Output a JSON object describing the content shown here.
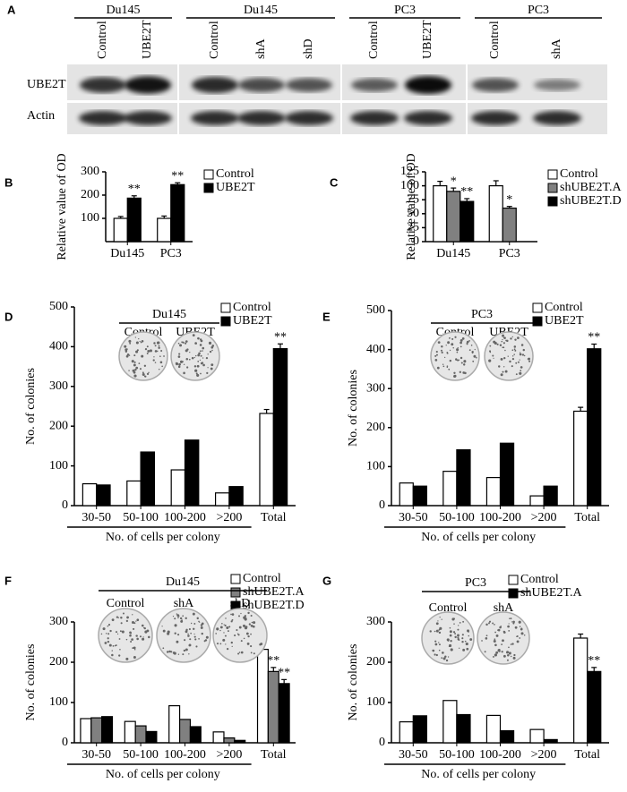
{
  "blot": {
    "panel": "A",
    "groups": [
      {
        "name": "Du145",
        "lanes": [
          "Control",
          "UBE2T"
        ]
      },
      {
        "name": "Du145",
        "lanes": [
          "Control",
          "shA",
          "shD"
        ]
      },
      {
        "name": "PC3",
        "lanes": [
          "Control",
          "UBE2T"
        ]
      },
      {
        "name": "PC3",
        "lanes": [
          "Control",
          "shA"
        ]
      }
    ],
    "rows": [
      "UBE2T",
      "Actin"
    ]
  },
  "chart_data": [
    {
      "type": "bar",
      "panel": "B",
      "y_label": "Relative value of OD",
      "categories": [
        "Du145",
        "PC3"
      ],
      "ylim": [
        0,
        300
      ],
      "yticks": [
        100,
        200,
        300
      ],
      "series": [
        {
          "name": "Control",
          "color": "#ffffff",
          "values": [
            100,
            100
          ],
          "errors": [
            8,
            10
          ]
        },
        {
          "name": "UBE2T",
          "color": "#000000",
          "values": [
            187,
            245
          ],
          "errors": [
            10,
            8
          ],
          "labels": [
            "**",
            "**"
          ]
        }
      ]
    },
    {
      "type": "bar",
      "panel": "C",
      "y_label": "Relative value of OD",
      "categories": [
        "Du145",
        "PC3"
      ],
      "ylim": [
        0,
        125
      ],
      "yticks": [
        0,
        25,
        50,
        75,
        100,
        125
      ],
      "series": [
        {
          "name": "Control",
          "color": "#ffffff",
          "values": [
            100,
            100
          ],
          "errors": [
            8,
            9
          ]
        },
        {
          "name": "shUBE2T.A",
          "color": "#808080",
          "values": [
            90,
            60
          ],
          "errors": [
            6,
            3
          ],
          "labels": [
            "*",
            "*"
          ]
        },
        {
          "name": "shUBE2T.D",
          "color": "#000000",
          "values": [
            72,
            null
          ],
          "errors": [
            5,
            null
          ],
          "labels": [
            "**",
            null
          ]
        }
      ]
    },
    {
      "type": "bar",
      "panel": "D",
      "y_label": "No. of colonies",
      "x_label": "No. of cells per colony",
      "categories": [
        "30-50",
        "50-100",
        "100-200",
        ">200",
        "Total"
      ],
      "ylim": [
        0,
        500
      ],
      "yticks": [
        0,
        100,
        200,
        300,
        400,
        500
      ],
      "inset_title": "Du145",
      "inset_labels": [
        "Control",
        "UBE2T"
      ],
      "series": [
        {
          "name": "Control",
          "color": "#ffffff",
          "values": [
            55,
            62,
            90,
            32,
            232
          ],
          "errors": [
            null,
            null,
            null,
            null,
            10
          ]
        },
        {
          "name": "UBE2T",
          "color": "#000000",
          "values": [
            52,
            135,
            165,
            48,
            395
          ],
          "errors": [
            null,
            null,
            null,
            null,
            12
          ],
          "labels": [
            null,
            null,
            null,
            null,
            "**"
          ]
        }
      ]
    },
    {
      "type": "bar",
      "panel": "E",
      "y_label": "No. of colonies",
      "x_label": "No. of cells per colony",
      "categories": [
        "30-50",
        "50-100",
        "100-200",
        ">200",
        "Total"
      ],
      "ylim": [
        0,
        500
      ],
      "yticks": [
        0,
        100,
        200,
        300,
        400,
        500
      ],
      "inset_title": "PC3",
      "inset_labels": [
        "Control",
        "UBE2T"
      ],
      "series": [
        {
          "name": "Control",
          "color": "#ffffff",
          "values": [
            58,
            88,
            72,
            25,
            242
          ],
          "errors": [
            null,
            null,
            null,
            null,
            10
          ]
        },
        {
          "name": "UBE2T",
          "color": "#000000",
          "values": [
            50,
            143,
            160,
            50,
            402
          ],
          "errors": [
            null,
            null,
            null,
            null,
            12
          ],
          "labels": [
            null,
            null,
            null,
            null,
            "**"
          ]
        }
      ]
    },
    {
      "type": "bar",
      "panel": "F",
      "y_label": "No. of colonies",
      "x_label": "No. of cells per colony",
      "categories": [
        "30-50",
        "50-100",
        "100-200",
        ">200",
        "Total"
      ],
      "ylim": [
        0,
        300
      ],
      "yticks": [
        0,
        100,
        200,
        300
      ],
      "inset_title": "Du145",
      "inset_labels": [
        "Control",
        "shA",
        "shD"
      ],
      "series": [
        {
          "name": "Control",
          "color": "#ffffff",
          "values": [
            60,
            53,
            92,
            27,
            232
          ],
          "errors": [
            null,
            null,
            null,
            null,
            10
          ]
        },
        {
          "name": "shUBE2T.A",
          "color": "#808080",
          "values": [
            62,
            42,
            58,
            12,
            177
          ],
          "errors": [
            null,
            null,
            null,
            null,
            10
          ],
          "labels": [
            null,
            null,
            null,
            null,
            "**"
          ]
        },
        {
          "name": "shUBE2T.D",
          "color": "#000000",
          "values": [
            65,
            28,
            40,
            6,
            147
          ],
          "errors": [
            null,
            null,
            null,
            null,
            10
          ],
          "labels": [
            null,
            null,
            null,
            null,
            "**"
          ]
        }
      ]
    },
    {
      "type": "bar",
      "panel": "G",
      "y_label": "No. of colonies",
      "x_label": "No. of cells per colony",
      "categories": [
        "30-50",
        "50-100",
        "100-200",
        ">200",
        "Total"
      ],
      "ylim": [
        0,
        300
      ],
      "yticks": [
        0,
        100,
        200,
        300
      ],
      "inset_title": "PC3",
      "inset_labels": [
        "Control",
        "shA"
      ],
      "series": [
        {
          "name": "Control",
          "color": "#ffffff",
          "values": [
            52,
            105,
            68,
            33,
            260
          ],
          "errors": [
            null,
            null,
            null,
            null,
            10
          ]
        },
        {
          "name": "shUBE2T.A",
          "color": "#000000",
          "values": [
            67,
            70,
            30,
            8,
            177
          ],
          "errors": [
            null,
            null,
            null,
            null,
            10
          ],
          "labels": [
            null,
            null,
            null,
            null,
            "**"
          ]
        }
      ]
    }
  ]
}
